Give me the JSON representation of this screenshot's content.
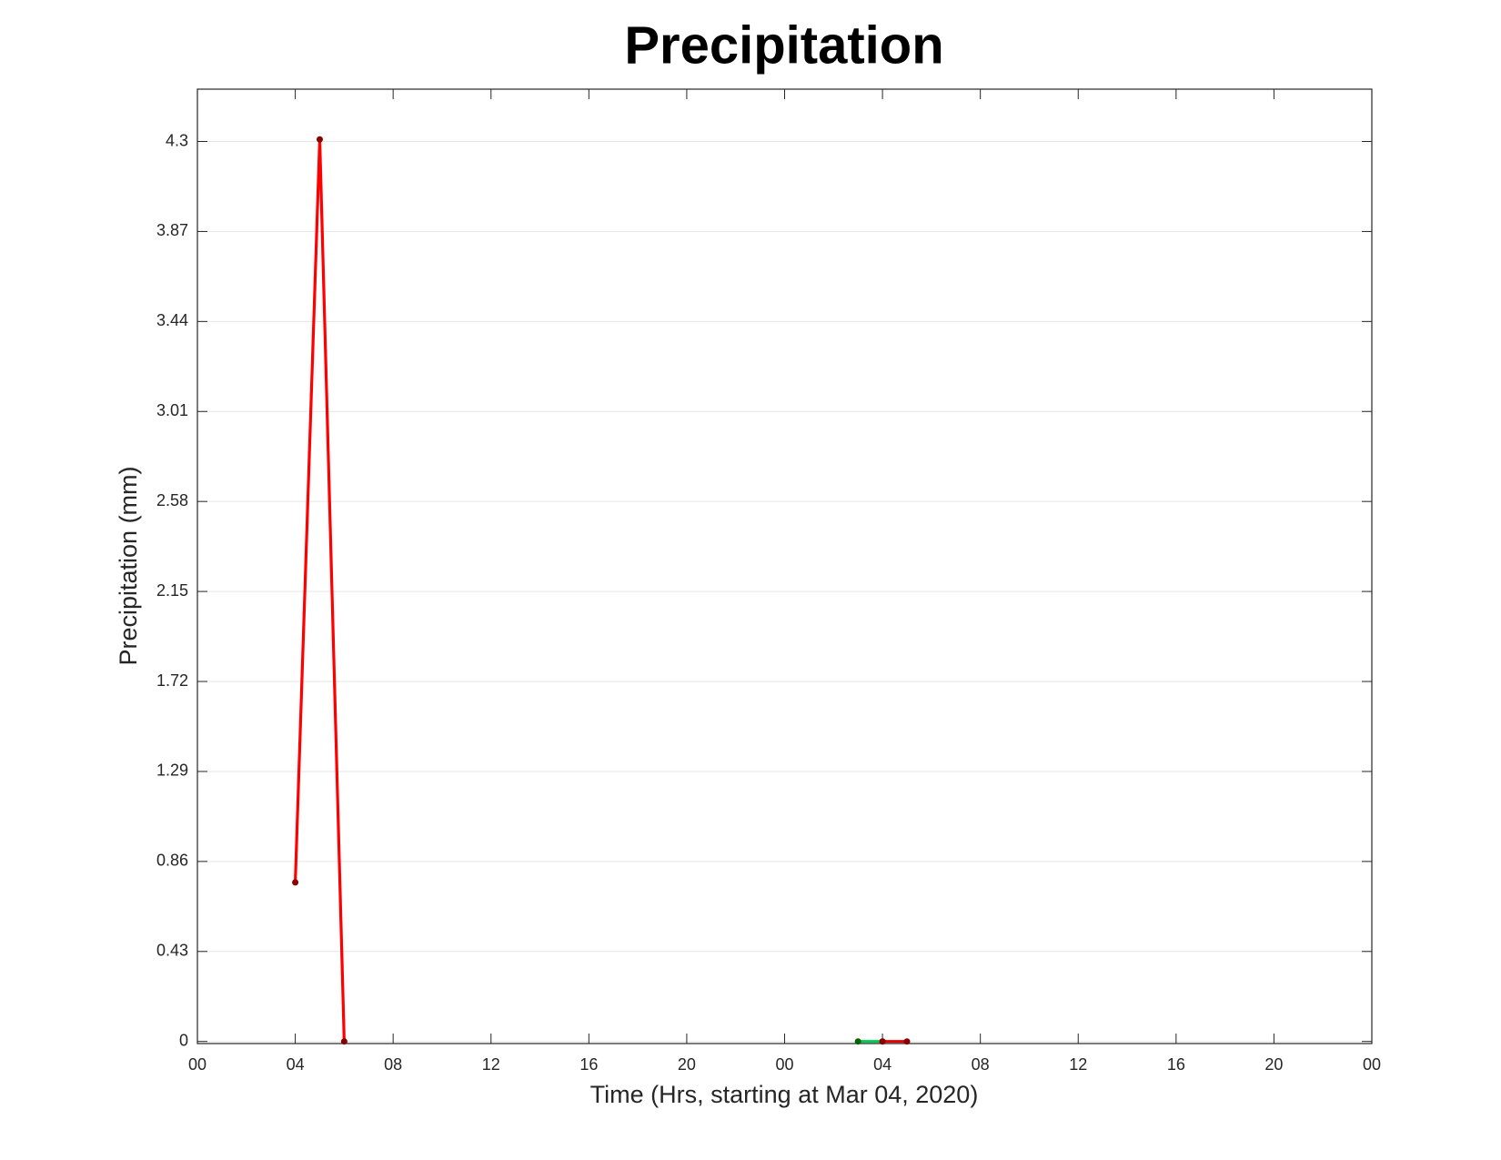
{
  "chart_data": {
    "type": "line",
    "title": "Precipitation",
    "xlabel": "Time (Hrs, starting at Mar 04, 2020)",
    "ylabel": "Precipitation (mm)",
    "xlim": [
      0,
      48
    ],
    "xticks": [
      {
        "value": 0,
        "label": "00"
      },
      {
        "value": 4,
        "label": "04"
      },
      {
        "value": 8,
        "label": "08"
      },
      12,
      16,
      20,
      {
        "value": 24,
        "label": "00"
      },
      {
        "value": 28,
        "label": "04"
      },
      {
        "value": 32,
        "label": "08"
      },
      {
        "value": 36,
        "label": "12"
      },
      {
        "value": 40,
        "label": "16"
      },
      {
        "value": 44,
        "label": "20"
      },
      {
        "value": 48,
        "label": "00"
      }
    ],
    "ylim": [
      -0.01,
      4.55
    ],
    "yticks": [
      0,
      0.43,
      0.86,
      1.29,
      1.72,
      2.15,
      2.58,
      3.01,
      3.44,
      3.87,
      4.3
    ],
    "grid": true,
    "series": [
      {
        "x": [
          4,
          5,
          6
        ],
        "values": [
          0.76,
          4.31,
          0
        ],
        "color": "#ff0000",
        "marker_color": "#8b0000"
      },
      {
        "x": [
          27,
          28
        ],
        "values": [
          0,
          0
        ],
        "color": "#00c853",
        "marker_color": "#006400"
      },
      {
        "x": [
          28,
          29
        ],
        "values": [
          0,
          0
        ],
        "color": "#e00000",
        "marker_color": "#8b0000"
      }
    ]
  }
}
